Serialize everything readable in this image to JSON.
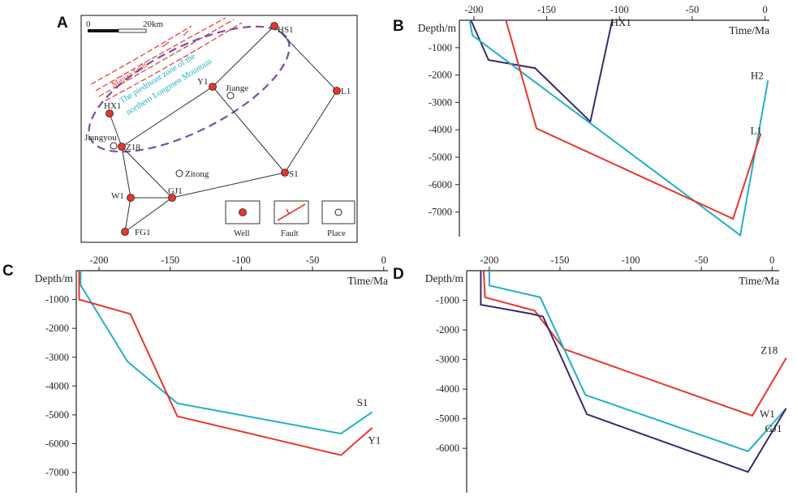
{
  "figure": {
    "panel_letters": [
      "A",
      "B",
      "C",
      "D"
    ]
  },
  "map": {
    "scale_start": "0",
    "scale_end": "20km",
    "fault_name": "Majiao fault",
    "zone_line1": "The piedmont zone of the",
    "zone_line2": "northern Longmen Mountain",
    "wells": [
      {
        "name": "HS1"
      },
      {
        "name": "Y1"
      },
      {
        "name": "L1"
      },
      {
        "name": "HX1"
      },
      {
        "name": "Z18"
      },
      {
        "name": "S1"
      },
      {
        "name": "GJ1"
      },
      {
        "name": "W1"
      },
      {
        "name": "FG1"
      }
    ],
    "places": [
      {
        "name": "Jiange"
      },
      {
        "name": "Jiangyou"
      },
      {
        "name": "Zitong"
      }
    ],
    "legend": {
      "well": "Well",
      "fault": "Fault",
      "place": "Place"
    },
    "colors": {
      "well": "#e8352b",
      "fault": "#e8352b",
      "zone": "#7b4fa0",
      "text": "#1fb1c5"
    }
  },
  "chart_data": [
    {
      "panel": "B",
      "type": "line",
      "xlabel": "Time/Ma",
      "ylabel": "Depth/m",
      "xlim": [
        -210,
        3
      ],
      "ylim": [
        -7900,
        0
      ],
      "xticks": [
        -200,
        -150,
        -100,
        -50,
        0
      ],
      "xtick_labels": [
        "-200",
        "-150",
        "-100",
        "-50",
        "0"
      ],
      "yticks": [
        -1000,
        -2000,
        -3000,
        -4000,
        -5000,
        -6000,
        -7000
      ],
      "ytick_labels": [
        "-1000",
        "-2000",
        "-3000",
        "-4000",
        "-5000",
        "-6000",
        "-7000"
      ],
      "series": [
        {
          "name": "HX1",
          "color": "#3b2a6e",
          "label_anchor": "start",
          "label_pos": [
            -106,
            -200
          ],
          "x": [
            -202,
            -190,
            -158,
            -120,
            -105
          ],
          "y": [
            0,
            -1450,
            -1750,
            -3700,
            0
          ]
        },
        {
          "name": "H2",
          "color": "#1fb1c5",
          "label_anchor": "end",
          "label_pos": [
            -1,
            -2150
          ],
          "x": [
            -203,
            -201,
            -17,
            2
          ],
          "y": [
            0,
            -550,
            -7850,
            -2200
          ]
        },
        {
          "name": "L1",
          "color": "#e8352b",
          "label_anchor": "end",
          "label_pos": [
            -2,
            -4150
          ],
          "x": [
            -178,
            -157,
            -22,
            -3
          ],
          "y": [
            0,
            -3950,
            -7250,
            -4150
          ]
        }
      ]
    },
    {
      "panel": "C",
      "type": "line",
      "xlabel": "Time/Ma",
      "ylabel": "Depth/m",
      "xlim": [
        -216,
        3
      ],
      "ylim": [
        -7700,
        0
      ],
      "xticks": [
        -200,
        -150,
        -100,
        -50,
        0
      ],
      "xtick_labels": [
        "-200",
        "-150",
        "-100",
        "-50",
        "0"
      ],
      "yticks": [
        -1000,
        -2000,
        -3000,
        -4000,
        -5000,
        -6000,
        -7000
      ],
      "ytick_labels": [
        "-1000",
        "-2000",
        "-3000",
        "-4000",
        "-5000",
        "-6000",
        "-7000"
      ],
      "series": [
        {
          "name": "S1",
          "color": "#1fb1c5",
          "label_anchor": "end",
          "label_pos": [
            -11,
            -4700
          ],
          "x": [
            -213,
            -213,
            -180,
            -145,
            -30,
            -8
          ],
          "y": [
            0,
            -500,
            -3150,
            -4600,
            -5650,
            -4900
          ]
        },
        {
          "name": "Y1",
          "color": "#e8352b",
          "label_anchor": "end",
          "label_pos": [
            -2,
            -6000
          ],
          "x": [
            -214,
            -214,
            -178,
            -145,
            -30,
            -8
          ],
          "y": [
            0,
            -1000,
            -1500,
            -5050,
            -6400,
            -5450
          ]
        }
      ]
    },
    {
      "panel": "D",
      "type": "line",
      "xlabel": "Time/Ma",
      "ylabel": "Depth/m",
      "xlim": [
        -216,
        5
      ],
      "ylim": [
        -7500,
        0
      ],
      "xticks": [
        -200,
        -150,
        -100,
        -50,
        0
      ],
      "xtick_labels": [
        "-200",
        "-150",
        "-100",
        "-50",
        "0"
      ],
      "yticks": [
        -1000,
        -2000,
        -3000,
        -4000,
        -5000,
        -6000
      ],
      "ytick_labels": [
        "-1000",
        "-2000",
        "-3000",
        "-4000",
        "-5000",
        "-6000"
      ],
      "series": [
        {
          "name": "Z18",
          "color": "#e8352b",
          "label_anchor": "end",
          "label_pos": [
            4,
            -2800
          ],
          "x": [
            -204,
            -203,
            -168,
            -147,
            -14,
            10
          ],
          "y": [
            0,
            -900,
            -1350,
            -2650,
            -4900,
            -2950
          ]
        },
        {
          "name": "W1",
          "color": "#1fb1c5",
          "label_anchor": "end",
          "label_pos": [
            2,
            -4950
          ],
          "x": [
            -200,
            -200,
            -164,
            -132,
            -17,
            10
          ],
          "y": [
            0,
            -500,
            -900,
            -4200,
            -6100,
            -4650
          ]
        },
        {
          "name": "GJ1",
          "color": "#3b2a6e",
          "label_anchor": "end",
          "label_pos": [
            7,
            -5450
          ],
          "x": [
            -206,
            -206,
            -171,
            -162,
            -131,
            -17,
            10
          ],
          "y": [
            0,
            -1150,
            -1450,
            -1550,
            -4850,
            -6800,
            -4650
          ]
        }
      ]
    }
  ]
}
